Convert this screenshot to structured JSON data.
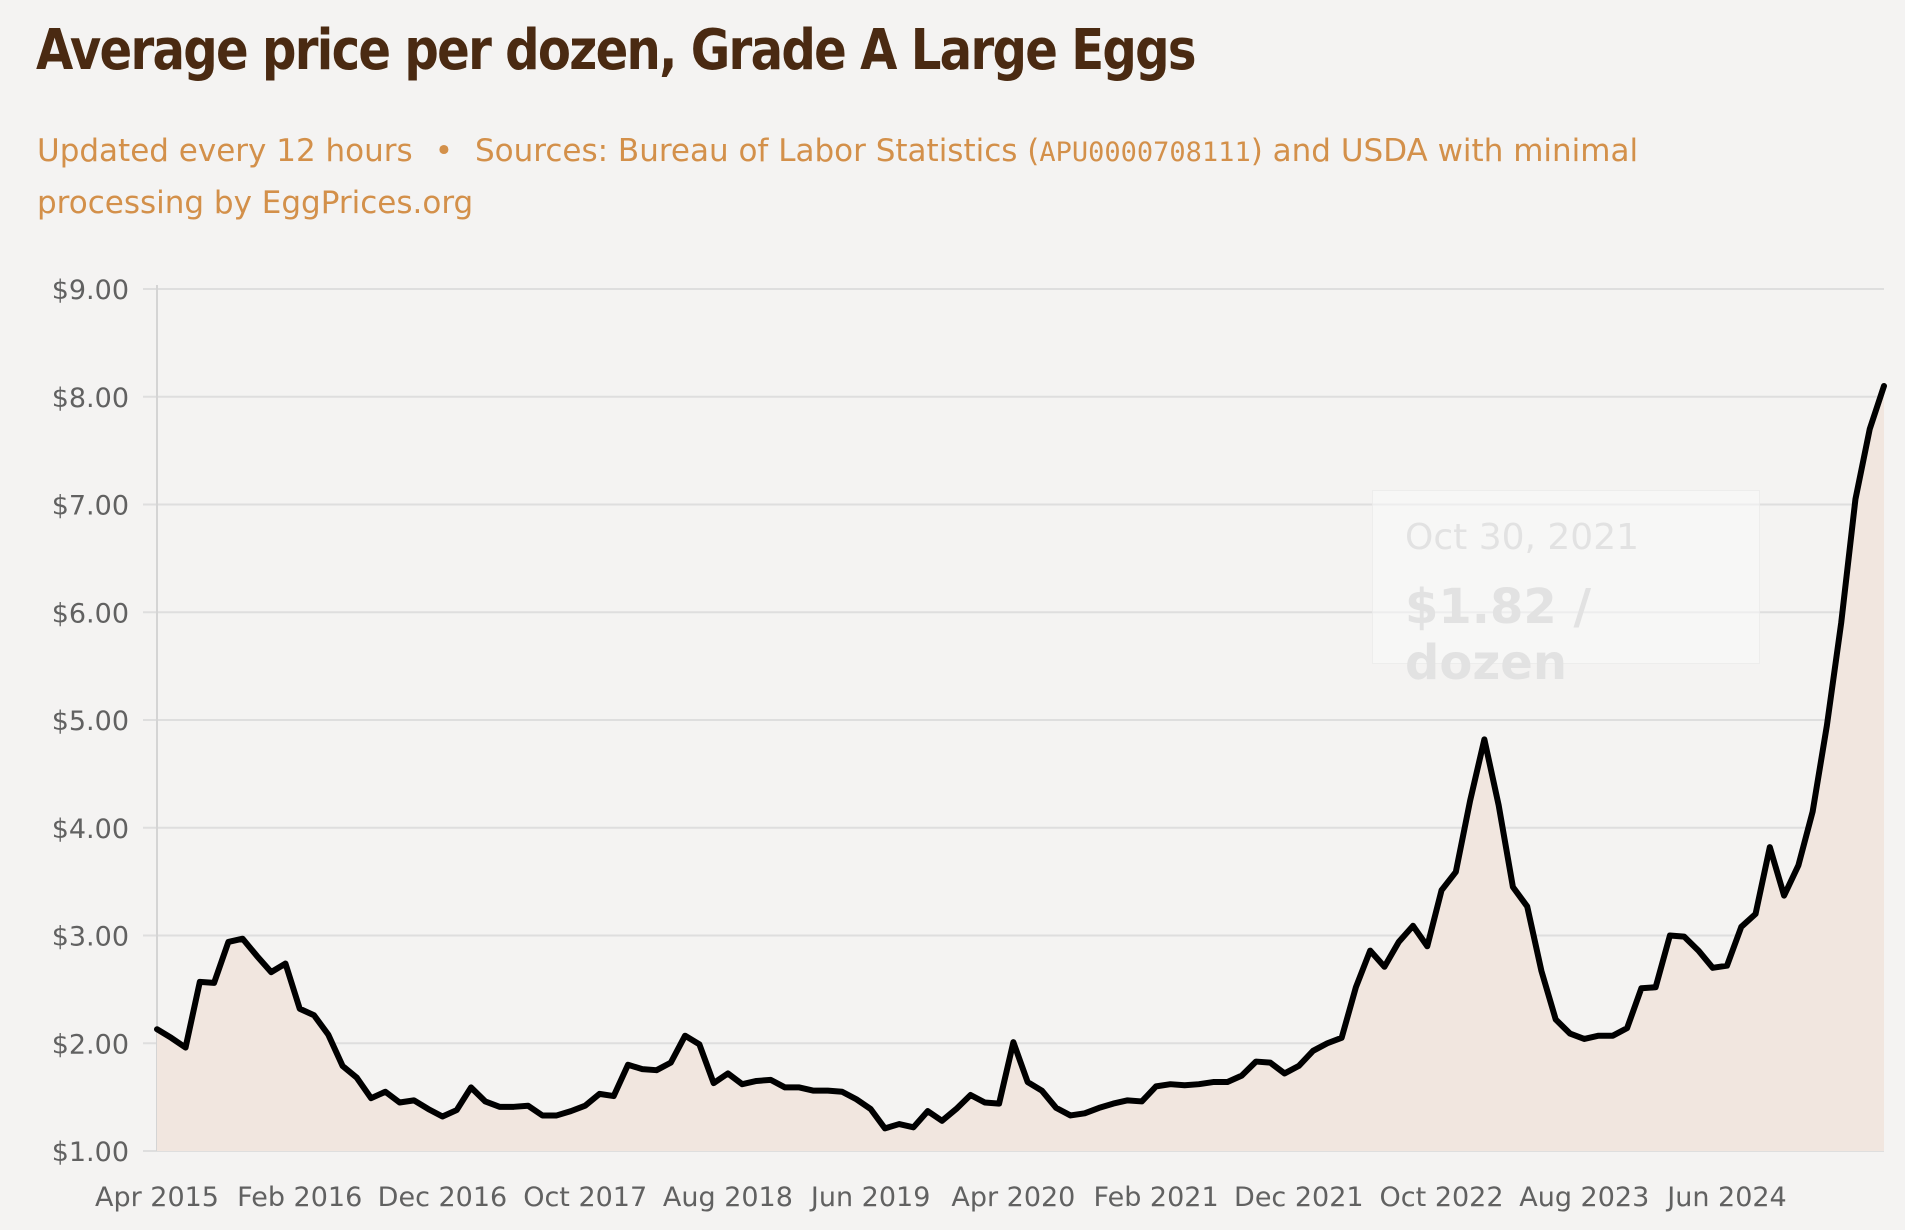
{
  "title": "Average price per dozen, Grade A Large Eggs",
  "subtitle": {
    "updated": "Updated every 12 hours",
    "separator": "•",
    "sources_prefix": "Sources: Bureau of Labor Statistics (",
    "series_code": "APU0000708111",
    "sources_suffix": ") and USDA with minimal processing by EggPrices.org"
  },
  "tooltip": {
    "date": "Oct 30, 2021",
    "value": "$1.82 / dozen"
  },
  "colors": {
    "title": "#4a2a12",
    "subtitle": "#d3904a",
    "line": "#000000",
    "area": "#f1e6df",
    "grid": "#dedede"
  },
  "chart_data": {
    "type": "area",
    "title": "Average price per dozen, Grade A Large Eggs",
    "xlabel": "",
    "ylabel": "",
    "ylim": [
      1,
      9
    ],
    "y_ticks": [
      "$1.00",
      "$2.00",
      "$3.00",
      "$4.00",
      "$5.00",
      "$6.00",
      "$7.00",
      "$8.00",
      "$9.00"
    ],
    "x_ticks": [
      "Apr 2015",
      "Feb 2016",
      "Dec 2016",
      "Oct 2017",
      "Aug 2018",
      "Jun 2019",
      "Apr 2020",
      "Feb 2021",
      "Dec 2021",
      "Oct 2022",
      "Aug 2023",
      "Jun 2024"
    ],
    "grid": true,
    "legend": "none",
    "series": [
      {
        "values_by_month": [
          [
            "2015-04",
            2.13
          ],
          [
            "2015-05",
            2.05
          ],
          [
            "2015-06",
            1.96
          ],
          [
            "2015-07",
            2.57
          ],
          [
            "2015-08",
            2.56
          ],
          [
            "2015-09",
            2.94
          ],
          [
            "2015-10",
            2.97
          ],
          [
            "2015-11",
            2.81
          ],
          [
            "2015-12",
            2.66
          ],
          [
            "2016-01",
            2.74
          ],
          [
            "2016-02",
            2.32
          ],
          [
            "2016-03",
            2.26
          ],
          [
            "2016-04",
            2.08
          ],
          [
            "2016-05",
            1.79
          ],
          [
            "2016-06",
            1.68
          ],
          [
            "2016-07",
            1.49
          ],
          [
            "2016-08",
            1.55
          ],
          [
            "2016-09",
            1.45
          ],
          [
            "2016-10",
            1.47
          ],
          [
            "2016-11",
            1.39
          ],
          [
            "2016-12",
            1.32
          ],
          [
            "2017-01",
            1.38
          ],
          [
            "2017-02",
            1.59
          ],
          [
            "2017-03",
            1.46
          ],
          [
            "2017-04",
            1.41
          ],
          [
            "2017-05",
            1.41
          ],
          [
            "2017-06",
            1.42
          ],
          [
            "2017-07",
            1.33
          ],
          [
            "2017-08",
            1.33
          ],
          [
            "2017-09",
            1.37
          ],
          [
            "2017-10",
            1.42
          ],
          [
            "2017-11",
            1.53
          ],
          [
            "2017-12",
            1.51
          ],
          [
            "2018-01",
            1.8
          ],
          [
            "2018-02",
            1.76
          ],
          [
            "2018-03",
            1.75
          ],
          [
            "2018-04",
            1.82
          ],
          [
            "2018-05",
            2.07
          ],
          [
            "2018-06",
            1.99
          ],
          [
            "2018-07",
            1.63
          ],
          [
            "2018-08",
            1.72
          ],
          [
            "2018-09",
            1.62
          ],
          [
            "2018-10",
            1.65
          ],
          [
            "2018-11",
            1.66
          ],
          [
            "2018-12",
            1.59
          ],
          [
            "2019-01",
            1.59
          ],
          [
            "2019-02",
            1.56
          ],
          [
            "2019-03",
            1.56
          ],
          [
            "2019-04",
            1.55
          ],
          [
            "2019-05",
            1.48
          ],
          [
            "2019-06",
            1.39
          ],
          [
            "2019-07",
            1.21
          ],
          [
            "2019-08",
            1.25
          ],
          [
            "2019-09",
            1.22
          ],
          [
            "2019-10",
            1.37
          ],
          [
            "2019-11",
            1.28
          ],
          [
            "2019-12",
            1.39
          ],
          [
            "2020-01",
            1.52
          ],
          [
            "2020-02",
            1.45
          ],
          [
            "2020-03",
            1.44
          ],
          [
            "2020-04",
            2.01
          ],
          [
            "2020-05",
            1.64
          ],
          [
            "2020-06",
            1.56
          ],
          [
            "2020-07",
            1.4
          ],
          [
            "2020-08",
            1.33
          ],
          [
            "2020-09",
            1.35
          ],
          [
            "2020-10",
            1.4
          ],
          [
            "2020-11",
            1.44
          ],
          [
            "2020-12",
            1.47
          ],
          [
            "2021-01",
            1.46
          ],
          [
            "2021-02",
            1.6
          ],
          [
            "2021-03",
            1.62
          ],
          [
            "2021-04",
            1.61
          ],
          [
            "2021-05",
            1.62
          ],
          [
            "2021-06",
            1.64
          ],
          [
            "2021-07",
            1.64
          ],
          [
            "2021-08",
            1.7
          ],
          [
            "2021-09",
            1.83
          ],
          [
            "2021-10",
            1.82
          ],
          [
            "2021-11",
            1.72
          ],
          [
            "2021-12",
            1.79
          ],
          [
            "2022-01",
            1.93
          ],
          [
            "2022-02",
            2.0
          ],
          [
            "2022-03",
            2.05
          ],
          [
            "2022-04",
            2.52
          ],
          [
            "2022-05",
            2.86
          ],
          [
            "2022-06",
            2.71
          ],
          [
            "2022-07",
            2.94
          ],
          [
            "2022-08",
            3.09
          ],
          [
            "2022-09",
            2.9
          ],
          [
            "2022-10",
            3.42
          ],
          [
            "2022-11",
            3.59
          ],
          [
            "2022-12",
            4.25
          ],
          [
            "2023-01",
            4.82
          ],
          [
            "2023-02",
            4.21
          ],
          [
            "2023-03",
            3.45
          ],
          [
            "2023-04",
            3.27
          ],
          [
            "2023-05",
            2.67
          ],
          [
            "2023-06",
            2.22
          ],
          [
            "2023-07",
            2.09
          ],
          [
            "2023-08",
            2.04
          ],
          [
            "2023-09",
            2.07
          ],
          [
            "2023-10",
            2.07
          ],
          [
            "2023-11",
            2.14
          ],
          [
            "2023-12",
            2.51
          ],
          [
            "2024-01",
            2.52
          ],
          [
            "2024-02",
            3.0
          ],
          [
            "2024-03",
            2.99
          ],
          [
            "2024-04",
            2.86
          ],
          [
            "2024-05",
            2.7
          ],
          [
            "2024-06",
            2.72
          ],
          [
            "2024-07",
            3.08
          ],
          [
            "2024-08",
            3.2
          ],
          [
            "2024-09",
            3.82
          ],
          [
            "2024-10",
            3.37
          ],
          [
            "2024-11",
            3.65
          ],
          [
            "2024-12",
            4.15
          ],
          [
            "2025-01",
            4.95
          ],
          [
            "2025-02",
            5.9
          ],
          [
            "2025-03",
            7.05
          ],
          [
            "2025-04",
            7.7
          ],
          [
            "2025-05",
            8.1
          ]
        ]
      }
    ]
  }
}
